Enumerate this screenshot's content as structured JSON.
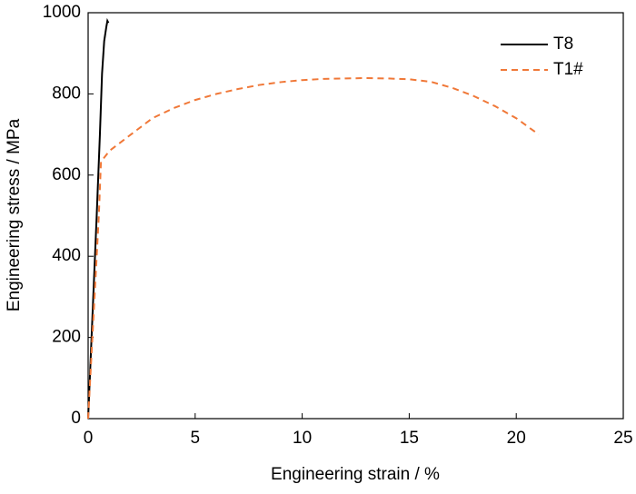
{
  "chart_data": {
    "type": "line",
    "xlabel": "Engineering strain / %",
    "ylabel": "Engineering stress / MPa",
    "xlim": [
      0,
      25
    ],
    "xticks": [
      0,
      5,
      10,
      15,
      20,
      25
    ],
    "ylim": [
      0,
      1000
    ],
    "yticks": [
      0,
      200,
      400,
      600,
      800,
      1000
    ],
    "legend": "upper right",
    "series": [
      {
        "name": "T8",
        "color": "#000000",
        "dash": "solid",
        "x": [
          0,
          0.2,
          0.4,
          0.55,
          0.65,
          0.75,
          0.85,
          0.9,
          0.95
        ],
        "values": [
          0,
          250,
          500,
          700,
          850,
          930,
          965,
          980,
          975
        ]
      },
      {
        "name": "T1#",
        "color": "#f07838",
        "dash": "dashed",
        "x": [
          0,
          0.3,
          0.5,
          0.6,
          1,
          2,
          3,
          4,
          5,
          6,
          7,
          8,
          9,
          10,
          11,
          12,
          13,
          14,
          15,
          16,
          17,
          18,
          19,
          20,
          21.05
        ],
        "values": [
          0,
          300,
          500,
          633,
          660,
          700,
          740,
          765,
          785,
          800,
          812,
          822,
          829,
          834,
          837,
          838,
          839,
          838,
          836,
          830,
          815,
          795,
          770,
          740,
          700
        ]
      }
    ]
  }
}
